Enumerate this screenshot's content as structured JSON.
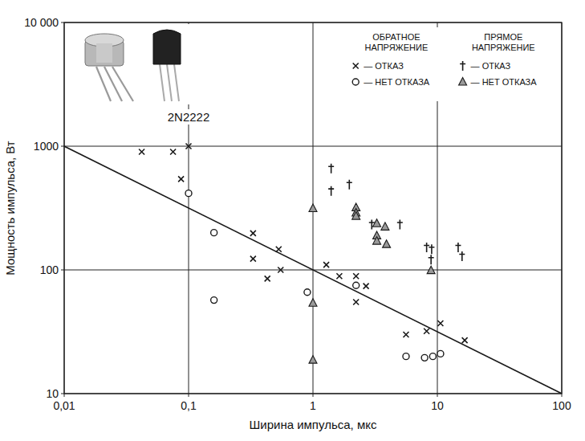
{
  "chart_data": {
    "type": "scatter",
    "x_label": "Ширина импульса, мкс",
    "y_label": "Мощность импульса, Вт",
    "log": true,
    "grid": true,
    "legend": "top-right",
    "xlim": [
      0.01,
      100
    ],
    "ylim": [
      10,
      10000
    ],
    "xticks": [
      {
        "value": 0.01,
        "label": "0,01"
      },
      {
        "value": 0.1,
        "label": "0,1"
      },
      1,
      10,
      100
    ],
    "yticks": [
      10,
      100,
      1000,
      {
        "value": 10000,
        "label": "10 000"
      }
    ],
    "legend_groups": [
      {
        "title": "ОБРАТНОЕ НАПРЯЖЕНИЕ"
      },
      {
        "title": "ПРЯМОЕ НАПРЯЖЕНИЕ"
      }
    ],
    "annotations": [
      {
        "text": "2N2222"
      }
    ],
    "series": [
      {
        "name": "— ОТКАЗ",
        "group": 0,
        "marker": "x",
        "color": "#1a1a1a",
        "x": [
          0.042,
          0.075,
          0.1,
          0.087,
          0.33,
          0.33,
          0.43,
          0.53,
          0.55,
          1.28,
          1.63,
          2.22,
          2.22,
          2.67,
          5.6,
          8.2,
          10.6,
          16.6
        ],
        "values": [
          900,
          900,
          1000,
          543,
          198,
          123,
          85,
          147,
          100,
          110,
          89,
          89,
          55,
          74,
          30,
          32,
          37,
          27
        ]
      },
      {
        "name": "— НЕТ ОТКАЗА",
        "group": 0,
        "marker": "circle",
        "color": "#1a1a1a",
        "x": [
          0.1,
          0.16,
          0.16,
          0.9,
          2.22,
          5.6,
          7.9,
          9.2,
          10.6
        ],
        "values": [
          416,
          200,
          57,
          66,
          75,
          20,
          19.5,
          20,
          21
        ]
      },
      {
        "name": "— ОТКАЗ",
        "group": 1,
        "marker": "dagger",
        "color": "#1a1a1a",
        "x": [
          1.4,
          1.4,
          1.96,
          2.97,
          5.0,
          8.2,
          9.0,
          8.9,
          14.7,
          15.8
        ],
        "values": [
          660,
          435,
          490,
          233,
          233,
          152,
          147,
          121,
          152,
          129
        ]
      },
      {
        "name": "— НЕТ ОТКАЗА",
        "group": 1,
        "marker": "triangle",
        "color": "#1a1a1a",
        "x": [
          1,
          1,
          1,
          2.22,
          2.22,
          2.22,
          3.26,
          3.26,
          3.26,
          3.8,
          3.9,
          8.9
        ],
        "values": [
          314,
          54,
          18.7,
          319,
          289,
          272,
          237,
          189,
          171,
          223,
          161,
          99
        ]
      },
      {
        "type": "line",
        "color": "#1a1a1a",
        "x": [
          0.01,
          100
        ],
        "values": [
          1000,
          10
        ]
      }
    ]
  }
}
